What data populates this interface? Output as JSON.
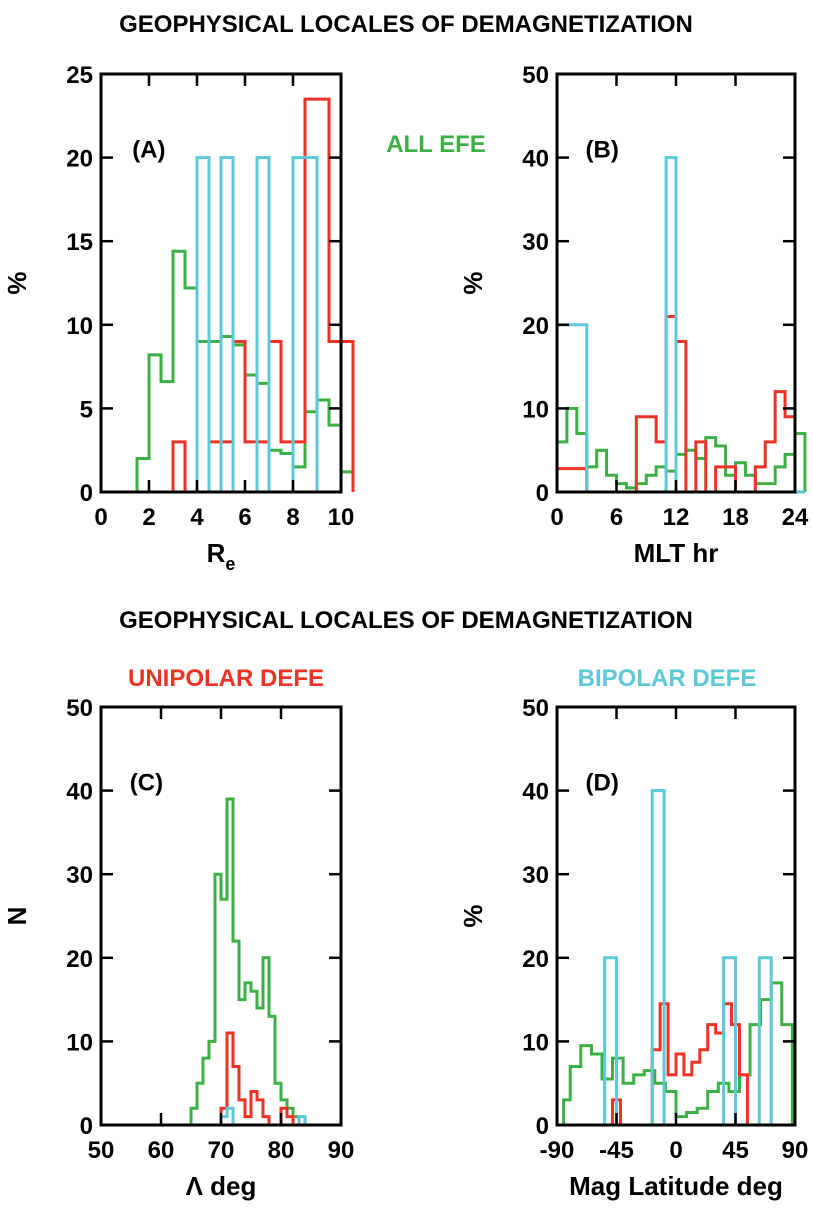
{
  "header": {
    "title_top": "GEOPHYSICAL LOCALES OF DEMAGNETIZATION",
    "title_bottom": "GEOPHYSICAL LOCALES OF DEMAGNETIZATION"
  },
  "legend": {
    "all": {
      "label": "ALL EFE",
      "color": "#3cb044"
    },
    "unipolar": {
      "label": "UNIPOLAR DEFE",
      "color": "#ee3224"
    },
    "bipolar": {
      "label": "BIPOLAR DEFE",
      "color": "#5cc8d8"
    }
  },
  "chart_data": [
    {
      "id": "A",
      "type": "step",
      "panel_label": "(A)",
      "xlabel": "R",
      "xlabel_sub": "e",
      "ylabel": "%",
      "xlim": [
        0,
        10
      ],
      "ylim": [
        0,
        25
      ],
      "xticks": [
        "0",
        "2",
        "4",
        "6",
        "8",
        "10"
      ],
      "yticks": [
        "0",
        "5",
        "10",
        "15",
        "20",
        "25"
      ],
      "series": [
        {
          "key": "all",
          "x": [
            1.5,
            2,
            2.5,
            3,
            3.5,
            4,
            4.5,
            5,
            5.5,
            6,
            6.5,
            7,
            7.5,
            8,
            8.5,
            9,
            9.5,
            10
          ],
          "y": [
            2,
            8.2,
            6.6,
            14.4,
            12.2,
            9,
            9,
            9.3,
            8.8,
            7,
            6.5,
            2.5,
            2.3,
            1.5,
            4.8,
            5.5,
            4,
            1.2
          ]
        },
        {
          "key": "unipolar",
          "x": [
            3,
            3.5,
            4,
            4.5,
            5,
            5.5,
            6,
            6.5,
            7,
            7.5,
            8,
            8.5,
            9,
            9.5,
            10
          ],
          "y": [
            3,
            0,
            0,
            3,
            3,
            9,
            3,
            3,
            9,
            3,
            3,
            23.5,
            23.5,
            9,
            9
          ]
        },
        {
          "key": "bipolar",
          "x": [
            4,
            4.5,
            5,
            5.5,
            6,
            6.5,
            7,
            7.5,
            8,
            8.5,
            9,
            9.5
          ],
          "y": [
            20,
            0,
            20,
            0,
            0,
            20,
            0,
            0,
            20,
            20,
            0,
            0
          ]
        }
      ]
    },
    {
      "id": "B",
      "type": "step",
      "panel_label": "(B)",
      "xlabel": "MLT hr",
      "ylabel": "%",
      "xlim": [
        0,
        24
      ],
      "ylim": [
        0,
        50
      ],
      "xticks": [
        "0",
        "6",
        "12",
        "18",
        "24"
      ],
      "yticks": [
        "0",
        "10",
        "20",
        "30",
        "40",
        "50"
      ],
      "series": [
        {
          "key": "all",
          "x": [
            0,
            1,
            2,
            3,
            4,
            5,
            6,
            7,
            8,
            9,
            10,
            11,
            12,
            13,
            14,
            15,
            16,
            17,
            18,
            19,
            20,
            21,
            22,
            23,
            24
          ],
          "y": [
            6,
            10,
            7,
            3,
            5,
            2,
            1,
            0.5,
            1,
            2,
            3,
            2.5,
            4.5,
            5,
            4,
            6.5,
            5.5,
            2,
            3.5,
            2,
            1,
            1,
            3,
            4.5,
            7
          ]
        },
        {
          "key": "unipolar",
          "x": [
            0,
            1,
            2,
            3,
            4,
            5,
            6,
            7,
            8,
            9,
            10,
            11,
            12,
            13,
            14,
            15,
            16,
            17,
            18,
            19,
            20,
            21,
            22,
            23,
            24
          ],
          "y": [
            2.8,
            2.8,
            2.8,
            0,
            0,
            0,
            0,
            0,
            9,
            9,
            6,
            21,
            18,
            0,
            6,
            0,
            3,
            3,
            0,
            0,
            3,
            6,
            12,
            9,
            0
          ]
        },
        {
          "key": "bipolar",
          "x": [
            0,
            1,
            2,
            3,
            4,
            5,
            6,
            7,
            8,
            9,
            10,
            11,
            12,
            13,
            14,
            15,
            16,
            17,
            18,
            19,
            20,
            21,
            22,
            23,
            24
          ],
          "y": [
            20,
            20,
            20,
            0,
            0,
            0,
            0,
            0,
            0,
            0,
            0,
            40,
            0,
            0,
            0,
            0,
            0,
            0,
            0,
            0,
            0,
            0,
            0,
            0,
            0
          ]
        }
      ]
    },
    {
      "id": "C",
      "type": "step",
      "panel_label": "(C)",
      "xlabel": "Λ deg",
      "ylabel": "N",
      "xlim": [
        50,
        90
      ],
      "ylim": [
        0,
        50
      ],
      "xticks": [
        "50",
        "60",
        "70",
        "80",
        "90"
      ],
      "yticks": [
        "0",
        "10",
        "20",
        "30",
        "40",
        "50"
      ],
      "series": [
        {
          "key": "all",
          "x": [
            65,
            66,
            67,
            68,
            69,
            70,
            71,
            72,
            73,
            74,
            75,
            76,
            77,
            78,
            79,
            80,
            81,
            82,
            83
          ],
          "y": [
            2,
            5,
            8,
            10,
            30,
            27,
            39,
            22,
            15,
            17,
            16,
            14,
            20,
            13,
            5,
            3,
            2,
            1,
            0
          ]
        },
        {
          "key": "unipolar",
          "x": [
            70,
            71,
            72,
            73,
            74,
            75,
            76,
            77,
            78,
            79,
            80,
            81,
            82
          ],
          "y": [
            2,
            11,
            7,
            3,
            1,
            4,
            3,
            1,
            0,
            0,
            2,
            1,
            0
          ]
        },
        {
          "key": "bipolar",
          "x": [
            70,
            71,
            72,
            73,
            82,
            83,
            84
          ],
          "y": [
            1,
            2,
            0,
            0,
            0,
            1,
            0
          ]
        }
      ]
    },
    {
      "id": "D",
      "type": "step",
      "panel_label": "(D)",
      "xlabel": "Mag Latitude deg",
      "ylabel": "%",
      "xlim": [
        -90,
        90
      ],
      "ylim": [
        0,
        50
      ],
      "xticks": [
        "-90",
        "-45",
        "0",
        "45",
        "90"
      ],
      "yticks": [
        "0",
        "10",
        "20",
        "30",
        "40",
        "50"
      ],
      "series": [
        {
          "key": "all",
          "x": [
            -85,
            -80,
            -72,
            -64,
            -56,
            -48,
            -40,
            -32,
            -24,
            -16,
            -8,
            0,
            8,
            16,
            24,
            32,
            40,
            48,
            56,
            64,
            72,
            80
          ],
          "y": [
            3,
            7,
            9.5,
            8.5,
            5.5,
            8,
            5,
            6,
            6.5,
            5,
            4,
            1,
            1.5,
            2,
            4,
            5,
            4,
            6,
            12,
            15,
            17,
            12
          ]
        },
        {
          "key": "unipolar",
          "x": [
            -48,
            -42,
            -36,
            -30,
            -24,
            -18,
            -12,
            -6,
            0,
            6,
            12,
            18,
            24,
            30,
            36,
            42,
            48,
            54,
            60,
            66,
            72
          ],
          "y": [
            3,
            0,
            0,
            0,
            0,
            9,
            14.5,
            6,
            8.5,
            6,
            7.5,
            9,
            12,
            11,
            14.5,
            12,
            6,
            0,
            0,
            0,
            0
          ]
        },
        {
          "key": "bipolar",
          "x": [
            -54,
            -45,
            -36,
            -27,
            -18,
            -9,
            0,
            9,
            18,
            27,
            36,
            45,
            54,
            63,
            72,
            81
          ],
          "y": [
            20,
            0,
            0,
            0,
            40,
            0,
            0,
            0,
            0,
            0,
            20,
            0,
            0,
            20,
            0,
            0
          ]
        }
      ]
    }
  ]
}
